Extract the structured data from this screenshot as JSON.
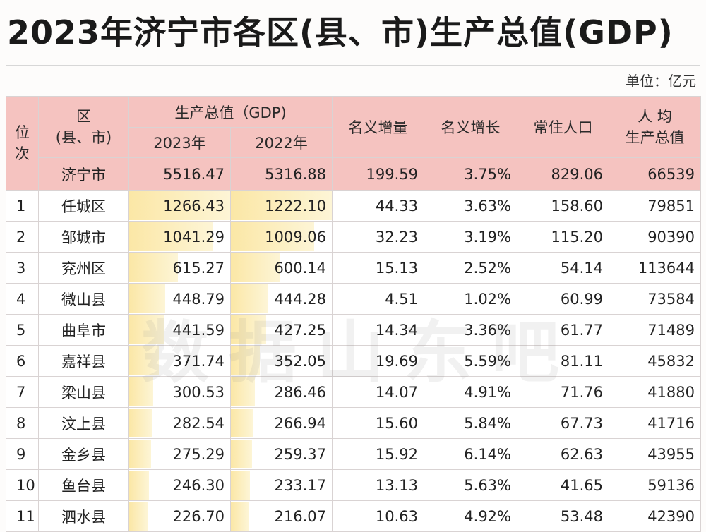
{
  "title": "2023年济宁市各区(县、市)生产总值(GDP)",
  "unit": "单位：亿元",
  "watermark": "数据山东吧",
  "headers": {
    "rank_top": "位",
    "rank_bottom": "次",
    "district_top": "区",
    "district_bottom": "(县、市)",
    "gdp_group": "生产总值（GDP)",
    "year_2023": "2023年",
    "year_2022": "2022年",
    "nominal_increase": "名义增量",
    "nominal_growth": "名义增长",
    "population": "常住人口",
    "per_capita_top": "人 均",
    "per_capita_bottom": "生产总值"
  },
  "total": {
    "name": "济宁市",
    "gdp_2023": "5516.47",
    "gdp_2022": "5316.88",
    "increase": "199.59",
    "growth": "3.75%",
    "population": "829.06",
    "per_capita": "66539"
  },
  "rows": [
    {
      "rank": "1",
      "name": "任城区",
      "gdp_2023": "1266.43",
      "gdp_2022": "1222.10",
      "increase": "44.33",
      "growth": "3.63%",
      "population": "158.60",
      "per_capita": "79851"
    },
    {
      "rank": "2",
      "name": "邹城市",
      "gdp_2023": "1041.29",
      "gdp_2022": "1009.06",
      "increase": "32.23",
      "growth": "3.19%",
      "population": "115.20",
      "per_capita": "90390"
    },
    {
      "rank": "3",
      "name": "兖州区",
      "gdp_2023": "615.27",
      "gdp_2022": "600.14",
      "increase": "15.13",
      "growth": "2.52%",
      "population": "54.14",
      "per_capita": "113644"
    },
    {
      "rank": "4",
      "name": "微山县",
      "gdp_2023": "448.79",
      "gdp_2022": "444.28",
      "increase": "4.51",
      "growth": "1.02%",
      "population": "60.99",
      "per_capita": "73584"
    },
    {
      "rank": "5",
      "name": "曲阜市",
      "gdp_2023": "441.59",
      "gdp_2022": "427.25",
      "increase": "14.34",
      "growth": "3.36%",
      "population": "61.77",
      "per_capita": "71489"
    },
    {
      "rank": "6",
      "name": "嘉祥县",
      "gdp_2023": "371.74",
      "gdp_2022": "352.05",
      "increase": "19.69",
      "growth": "5.59%",
      "population": "81.11",
      "per_capita": "45832"
    },
    {
      "rank": "7",
      "name": "梁山县",
      "gdp_2023": "300.53",
      "gdp_2022": "286.46",
      "increase": "14.07",
      "growth": "4.91%",
      "population": "71.76",
      "per_capita": "41880"
    },
    {
      "rank": "8",
      "name": "汶上县",
      "gdp_2023": "282.54",
      "gdp_2022": "266.94",
      "increase": "15.60",
      "growth": "5.84%",
      "population": "67.73",
      "per_capita": "41716"
    },
    {
      "rank": "9",
      "name": "金乡县",
      "gdp_2023": "275.29",
      "gdp_2022": "259.37",
      "increase": "15.92",
      "growth": "6.14%",
      "population": "62.63",
      "per_capita": "43955"
    },
    {
      "rank": "10",
      "name": "鱼台县",
      "gdp_2023": "246.30",
      "gdp_2022": "233.17",
      "increase": "13.13",
      "growth": "5.63%",
      "population": "41.65",
      "per_capita": "59136"
    },
    {
      "rank": "11",
      "name": "泗水县",
      "gdp_2023": "226.70",
      "gdp_2022": "216.07",
      "increase": "10.63",
      "growth": "4.92%",
      "population": "53.48",
      "per_capita": "42390"
    }
  ],
  "colors": {
    "header_bg": "#f5c3c0",
    "databar": "#fbe7a6"
  }
}
